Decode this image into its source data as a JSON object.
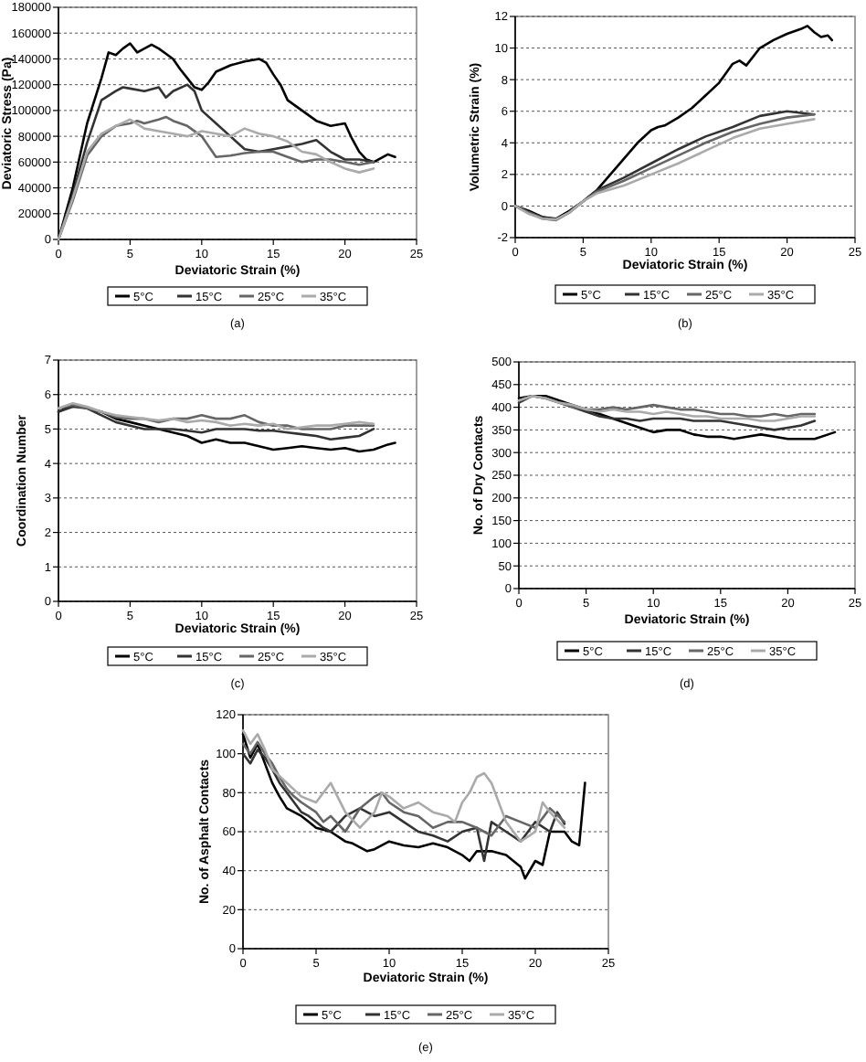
{
  "chart_data": [
    {
      "type": "line",
      "xlabel": "Deviatoric Strain (%)",
      "ylabel": "Deviatoric Stress (Pa)",
      "annotations": [
        "(a)"
      ],
      "xlim": [
        0,
        25
      ],
      "xticks": [
        0,
        5,
        10,
        15,
        20,
        25
      ],
      "ylim": [
        0,
        180000
      ],
      "yticks": [
        0,
        20000,
        40000,
        60000,
        80000,
        100000,
        120000,
        140000,
        160000,
        180000
      ],
      "grid": "y",
      "legend": "bottom",
      "series": [
        {
          "name": "5°C",
          "color": "#000000",
          "x": [
            0,
            1,
            2,
            3,
            3.5,
            4,
            4.5,
            5,
            5.5,
            6,
            6.5,
            7,
            7.5,
            8,
            8.5,
            9,
            9.5,
            10,
            10.5,
            11,
            12,
            13,
            14,
            14.5,
            15,
            15.5,
            16,
            17,
            18,
            19,
            20,
            20.5,
            21,
            21.5,
            22,
            22.5,
            23,
            23.5
          ],
          "values": [
            0,
            40000,
            90000,
            125000,
            145000,
            143000,
            148000,
            152000,
            145000,
            148000,
            151000,
            148000,
            144000,
            140000,
            132000,
            125000,
            118000,
            116000,
            122000,
            130000,
            135000,
            138000,
            140000,
            137000,
            128000,
            120000,
            108000,
            100000,
            92000,
            88000,
            90000,
            78000,
            68000,
            62000,
            60000,
            63000,
            66000,
            64000
          ]
        },
        {
          "name": "15°C",
          "color": "#333333",
          "x": [
            0,
            1,
            2,
            3,
            4,
            4.5,
            5,
            6,
            7,
            7.5,
            8,
            9,
            9.5,
            10,
            11,
            12,
            13,
            14,
            15,
            16,
            17,
            18,
            19,
            20,
            21,
            22
          ],
          "values": [
            0,
            35000,
            75000,
            108000,
            115000,
            118000,
            117000,
            115000,
            118000,
            110000,
            115000,
            120000,
            115000,
            100000,
            90000,
            80000,
            70000,
            68000,
            70000,
            72000,
            74000,
            77000,
            68000,
            62000,
            62000,
            60000
          ]
        },
        {
          "name": "25°C",
          "color": "#666666",
          "x": [
            0,
            1,
            2,
            3,
            4,
            5,
            5.5,
            6,
            7,
            7.5,
            8,
            9,
            10,
            11,
            12,
            13,
            14,
            15,
            16,
            17,
            18,
            19,
            20,
            21,
            22
          ],
          "values": [
            0,
            30000,
            65000,
            80000,
            88000,
            90000,
            92000,
            90000,
            93000,
            95000,
            92000,
            88000,
            80000,
            64000,
            65000,
            67000,
            68000,
            68000,
            64000,
            60000,
            62000,
            62000,
            60000,
            58000,
            60000
          ]
        },
        {
          "name": "35°C",
          "color": "#aaaaaa",
          "x": [
            0,
            1,
            2,
            3,
            4,
            5,
            6,
            7,
            8,
            9,
            10,
            11,
            12,
            13,
            14,
            15,
            16,
            17,
            18,
            19,
            20,
            21,
            22
          ],
          "values": [
            0,
            32000,
            68000,
            82000,
            88000,
            93000,
            86000,
            84000,
            82000,
            80000,
            84000,
            82000,
            80000,
            86000,
            82000,
            80000,
            76000,
            68000,
            66000,
            60000,
            55000,
            52000,
            55000
          ]
        }
      ]
    },
    {
      "type": "line",
      "xlabel": "Deviatoric Strain (%)",
      "ylabel": "Volumetric Strain (%)",
      "annotations": [
        "(b)"
      ],
      "xlim": [
        0,
        25
      ],
      "xticks": [
        0,
        5,
        10,
        15,
        20,
        25
      ],
      "ylim": [
        -2,
        12
      ],
      "yticks": [
        -2,
        0,
        2,
        4,
        6,
        8,
        10,
        12
      ],
      "grid": "y",
      "legend": "bottom",
      "series": [
        {
          "name": "5°C",
          "color": "#000000",
          "x": [
            0,
            1,
            2,
            3,
            4,
            5,
            6,
            7,
            8,
            9,
            10,
            10.5,
            11,
            12,
            13,
            14,
            15,
            16,
            16.5,
            17,
            18,
            19,
            20,
            21,
            21.5,
            22,
            22.5,
            23,
            23.3
          ],
          "values": [
            0,
            -0.3,
            -0.7,
            -0.8,
            -0.3,
            0.3,
            1,
            2,
            3,
            4,
            4.8,
            5,
            5.1,
            5.6,
            6.2,
            7,
            7.8,
            9,
            9.2,
            8.9,
            10,
            10.5,
            10.9,
            11.2,
            11.4,
            11,
            10.7,
            10.8,
            10.5
          ]
        },
        {
          "name": "15°C",
          "color": "#333333",
          "x": [
            0,
            1,
            2,
            3,
            4,
            5,
            6,
            8,
            10,
            12,
            14,
            16,
            18,
            20,
            21,
            22
          ],
          "values": [
            0,
            -0.4,
            -0.7,
            -0.85,
            -0.4,
            0.3,
            1,
            1.8,
            2.7,
            3.6,
            4.4,
            5,
            5.7,
            6,
            5.9,
            5.8
          ]
        },
        {
          "name": "25°C",
          "color": "#666666",
          "x": [
            0,
            1,
            2,
            3,
            4,
            5,
            6,
            8,
            10,
            12,
            14,
            16,
            18,
            20,
            22
          ],
          "values": [
            0,
            -0.4,
            -0.8,
            -0.9,
            -0.4,
            0.3,
            0.9,
            1.6,
            2.4,
            3.2,
            4,
            4.7,
            5.2,
            5.6,
            5.8
          ]
        },
        {
          "name": "35°C",
          "color": "#aaaaaa",
          "x": [
            0,
            1,
            2,
            3,
            4,
            5,
            6,
            8,
            10,
            12,
            14,
            16,
            18,
            20,
            22
          ],
          "values": [
            0,
            -0.5,
            -0.8,
            -0.85,
            -0.4,
            0.3,
            0.8,
            1.3,
            2,
            2.7,
            3.5,
            4.3,
            4.9,
            5.2,
            5.5
          ]
        }
      ]
    },
    {
      "type": "line",
      "xlabel": "Deviatoric Strain (%)",
      "ylabel": "Coordination Number",
      "annotations": [
        "(c)"
      ],
      "xlim": [
        0,
        25
      ],
      "xticks": [
        0,
        5,
        10,
        15,
        20,
        25
      ],
      "ylim": [
        0,
        7
      ],
      "yticks": [
        0,
        1,
        2,
        3,
        4,
        5,
        6,
        7
      ],
      "grid": "y",
      "legend": "bottom",
      "series": [
        {
          "name": "5°C",
          "color": "#000000",
          "x": [
            0,
            1,
            2,
            3,
            4,
            5,
            6,
            7,
            8,
            9,
            10,
            11,
            12,
            13,
            14,
            15,
            16,
            17,
            18,
            19,
            20,
            21,
            22,
            23,
            23.5
          ],
          "values": [
            5.5,
            5.7,
            5.6,
            5.5,
            5.3,
            5.2,
            5.1,
            5,
            4.9,
            4.8,
            4.6,
            4.7,
            4.6,
            4.6,
            4.5,
            4.4,
            4.45,
            4.5,
            4.45,
            4.4,
            4.45,
            4.35,
            4.4,
            4.55,
            4.6
          ]
        },
        {
          "name": "15°C",
          "color": "#333333",
          "x": [
            0,
            1,
            2,
            3,
            4,
            5,
            6,
            7,
            8,
            9,
            10,
            11,
            12,
            13,
            14,
            15,
            16,
            17,
            18,
            19,
            20,
            21,
            22
          ],
          "values": [
            5.5,
            5.65,
            5.6,
            5.4,
            5.2,
            5.1,
            5,
            5,
            5,
            4.95,
            4.9,
            5,
            5,
            5,
            4.95,
            4.95,
            4.9,
            4.85,
            4.8,
            4.7,
            4.75,
            4.8,
            5
          ]
        },
        {
          "name": "25°C",
          "color": "#666666",
          "x": [
            0,
            1,
            2,
            3,
            4,
            5,
            6,
            7,
            8,
            9,
            10,
            11,
            12,
            13,
            14,
            15,
            16,
            17,
            18,
            19,
            20,
            21,
            22
          ],
          "values": [
            5.6,
            5.7,
            5.6,
            5.5,
            5.35,
            5.3,
            5.3,
            5.2,
            5.3,
            5.3,
            5.4,
            5.3,
            5.3,
            5.4,
            5.2,
            5.1,
            5.1,
            5,
            5,
            5,
            5.1,
            5.1,
            5.1
          ]
        },
        {
          "name": "35°C",
          "color": "#aaaaaa",
          "x": [
            0,
            1,
            2,
            3,
            4,
            5,
            6,
            7,
            8,
            9,
            10,
            11,
            12,
            13,
            14,
            15,
            16,
            17,
            18,
            19,
            20,
            21,
            22
          ],
          "values": [
            5.6,
            5.75,
            5.65,
            5.5,
            5.4,
            5.35,
            5.3,
            5.25,
            5.3,
            5.2,
            5.25,
            5.2,
            5.1,
            5.15,
            5.1,
            5.15,
            5,
            5.05,
            5.1,
            5.1,
            5.15,
            5.2,
            5.15
          ]
        }
      ]
    },
    {
      "type": "line",
      "xlabel": "Deviatoric Strain (%)",
      "ylabel": "No. of Dry Contacts",
      "annotations": [
        "(d)"
      ],
      "xlim": [
        0,
        25
      ],
      "xticks": [
        0,
        5,
        10,
        15,
        20,
        25
      ],
      "ylim": [
        0,
        500
      ],
      "yticks": [
        0,
        50,
        100,
        150,
        200,
        250,
        300,
        350,
        400,
        450,
        500
      ],
      "grid": "y",
      "legend": "bottom",
      "series": [
        {
          "name": "5°C",
          "color": "#000000",
          "x": [
            0,
            1,
            2,
            3,
            4,
            5,
            6,
            7,
            8,
            9,
            10,
            11,
            12,
            13,
            14,
            15,
            16,
            17,
            18,
            19,
            20,
            21,
            22,
            23,
            23.5
          ],
          "values": [
            420,
            425,
            425,
            415,
            405,
            395,
            385,
            375,
            365,
            355,
            345,
            350,
            350,
            340,
            335,
            335,
            330,
            335,
            340,
            335,
            330,
            330,
            330,
            340,
            345
          ]
        },
        {
          "name": "15°C",
          "color": "#333333",
          "x": [
            0,
            1,
            2,
            3,
            4,
            5,
            6,
            7,
            8,
            9,
            10,
            11,
            12,
            13,
            14,
            15,
            16,
            17,
            18,
            19,
            20,
            21,
            22
          ],
          "values": [
            410,
            425,
            420,
            410,
            400,
            390,
            380,
            375,
            375,
            370,
            375,
            375,
            375,
            370,
            370,
            370,
            365,
            360,
            355,
            350,
            355,
            360,
            370
          ]
        },
        {
          "name": "25°C",
          "color": "#666666",
          "x": [
            0,
            1,
            2,
            3,
            4,
            5,
            6,
            7,
            8,
            9,
            10,
            11,
            12,
            13,
            14,
            15,
            16,
            17,
            18,
            19,
            20,
            21,
            22
          ],
          "values": [
            415,
            425,
            420,
            410,
            400,
            395,
            395,
            400,
            395,
            400,
            405,
            400,
            395,
            395,
            390,
            385,
            385,
            380,
            380,
            385,
            380,
            385,
            385
          ]
        },
        {
          "name": "35°C",
          "color": "#aaaaaa",
          "x": [
            0,
            1,
            2,
            3,
            4,
            5,
            6,
            7,
            8,
            9,
            10,
            11,
            12,
            13,
            14,
            15,
            16,
            17,
            18,
            19,
            20,
            21,
            22
          ],
          "values": [
            415,
            425,
            420,
            410,
            405,
            395,
            390,
            395,
            390,
            390,
            385,
            390,
            385,
            380,
            380,
            375,
            375,
            375,
            370,
            370,
            375,
            380,
            380
          ]
        }
      ]
    },
    {
      "type": "line",
      "xlabel": "Deviatoric Strain (%)",
      "ylabel": "No. of Asphalt Contacts",
      "annotations": [
        "(e)"
      ],
      "xlim": [
        0,
        25
      ],
      "xticks": [
        0,
        5,
        10,
        15,
        20,
        25
      ],
      "ylim": [
        0,
        120
      ],
      "yticks": [
        0,
        20,
        40,
        60,
        80,
        100,
        120
      ],
      "grid": "y",
      "legend": "bottom",
      "series": [
        {
          "name": "5°C",
          "color": "#000000",
          "x": [
            0,
            0.5,
            1,
            1.5,
            2,
            2.5,
            3,
            3.5,
            4,
            4.5,
            5,
            6,
            7,
            7.5,
            8,
            8.5,
            9,
            10,
            11,
            12,
            13,
            14,
            15,
            15.5,
            16,
            17,
            18,
            19,
            19.3,
            20,
            20.5,
            21,
            22,
            22.5,
            23,
            23.4
          ],
          "values": [
            110,
            98,
            105,
            95,
            85,
            78,
            72,
            70,
            68,
            65,
            62,
            60,
            55,
            54,
            52,
            50,
            51,
            55,
            53,
            52,
            54,
            52,
            48,
            45,
            50,
            50,
            48,
            42,
            36,
            45,
            43,
            60,
            60,
            55,
            53,
            85
          ]
        },
        {
          "name": "15°C",
          "color": "#333333",
          "x": [
            0,
            0.5,
            1,
            1.5,
            2,
            2.5,
            3,
            3.5,
            4,
            4.5,
            5,
            5.5,
            6,
            7,
            8,
            9,
            10,
            11,
            12,
            13,
            14,
            15,
            16,
            16.5,
            17,
            18,
            19,
            20,
            21,
            21.5,
            22
          ],
          "values": [
            100,
            95,
            102,
            98,
            92,
            85,
            80,
            75,
            70,
            68,
            65,
            62,
            60,
            68,
            72,
            68,
            70,
            65,
            60,
            58,
            55,
            60,
            62,
            45,
            65,
            60,
            55,
            65,
            60,
            70,
            64
          ]
        },
        {
          "name": "25°C",
          "color": "#666666",
          "x": [
            0,
            0.5,
            1,
            1.5,
            2,
            2.5,
            3,
            3.5,
            4,
            5,
            5.5,
            6,
            7,
            8,
            9,
            9.5,
            10,
            11,
            12,
            13,
            14,
            15,
            16,
            17,
            18,
            19,
            20,
            21,
            22
          ],
          "values": [
            105,
            100,
            106,
            100,
            95,
            88,
            82,
            78,
            75,
            70,
            65,
            68,
            60,
            72,
            78,
            80,
            75,
            70,
            68,
            62,
            65,
            65,
            62,
            58,
            68,
            65,
            62,
            72,
            65
          ]
        },
        {
          "name": "35°C",
          "color": "#aaaaaa",
          "x": [
            0,
            0.5,
            1,
            1.5,
            2,
            3,
            4,
            5,
            5.5,
            6,
            7,
            8,
            9,
            9.5,
            10,
            11,
            12,
            13,
            14,
            14.5,
            15,
            15.5,
            16,
            16.5,
            17,
            17.5,
            18,
            19,
            20,
            20.5,
            21,
            22
          ],
          "values": [
            112,
            105,
            110,
            102,
            92,
            85,
            78,
            75,
            80,
            85,
            70,
            62,
            70,
            80,
            78,
            72,
            75,
            70,
            68,
            65,
            75,
            80,
            88,
            90,
            85,
            75,
            65,
            55,
            60,
            75,
            70,
            62
          ]
        }
      ]
    }
  ]
}
